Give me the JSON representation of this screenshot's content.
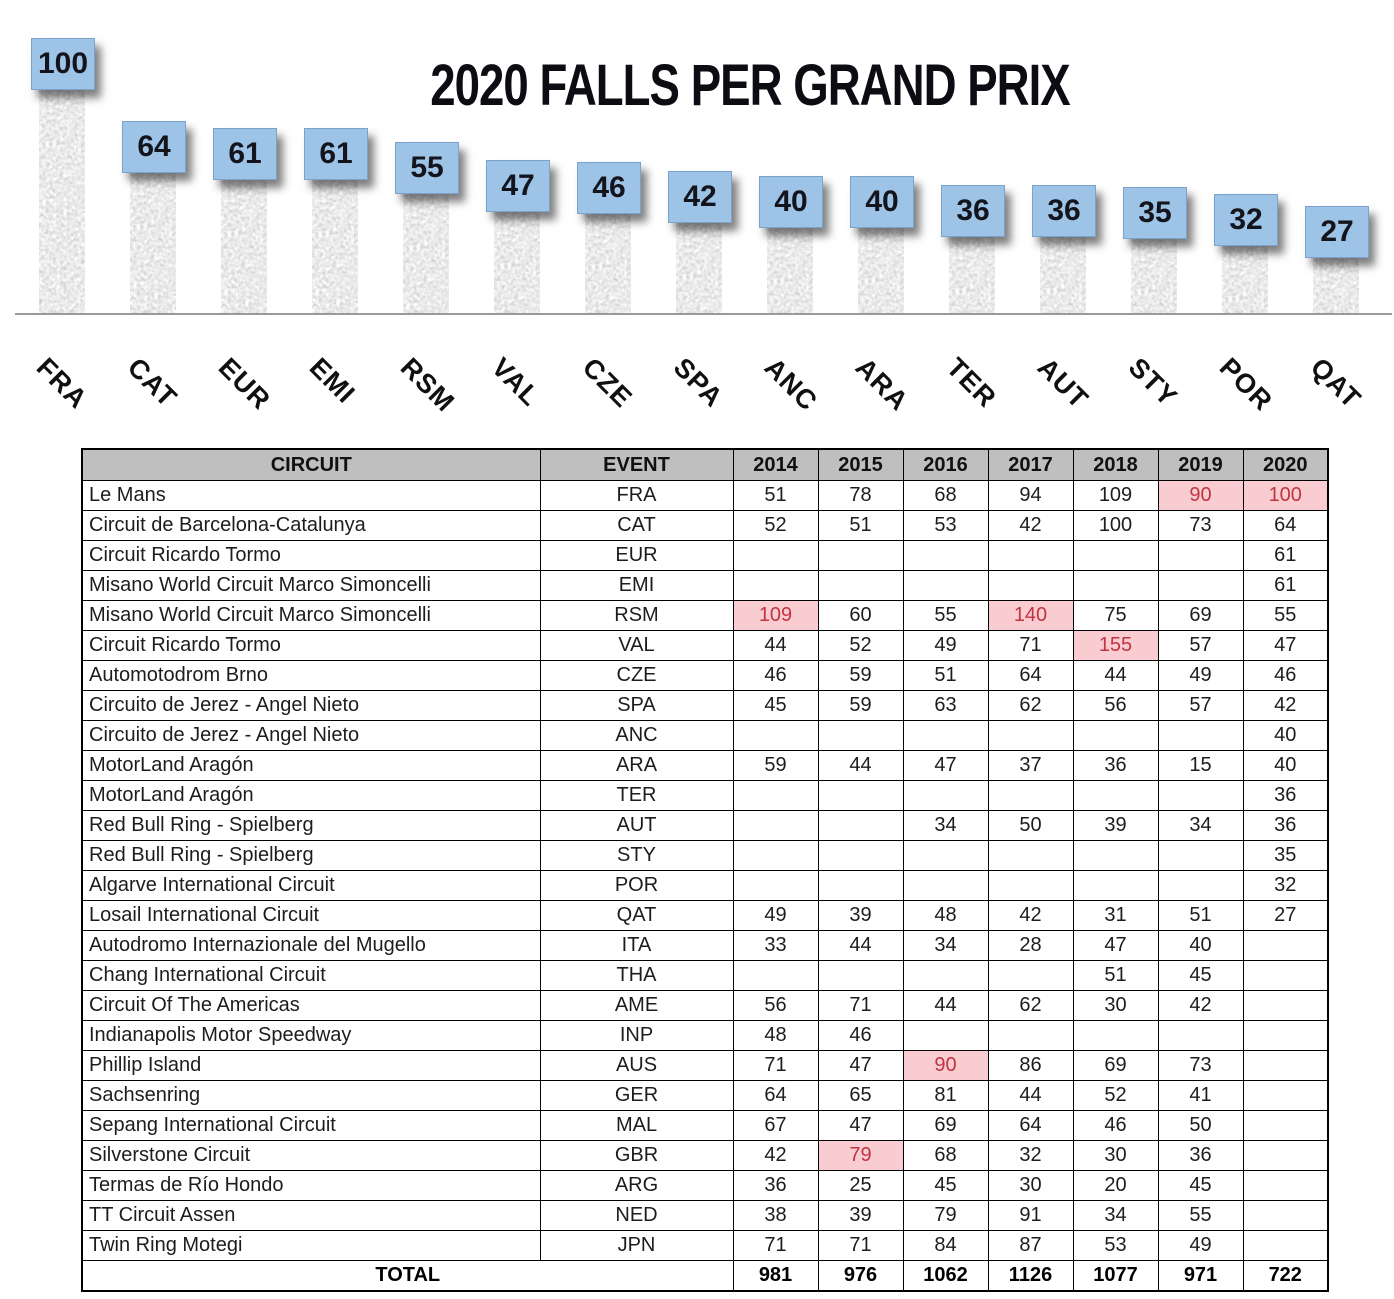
{
  "colors": {
    "value_box_bg": "#9dc3e6",
    "bar_fill": "#b9b9b9",
    "header_bg": "#bfbfbf",
    "highlight_bg": "#f9ccd2",
    "highlight_text": "#bf3540",
    "axis_line": "#9a9a9a",
    "title_text": "#0c0c12"
  },
  "chart_data": {
    "type": "bar",
    "title": "2020 FALLS PER GRAND PRIX",
    "categories": [
      "FRA",
      "CAT",
      "EUR",
      "EMI",
      "RSM",
      "VAL",
      "CZE",
      "SPA",
      "ANC",
      "ARA",
      "TER",
      "AUT",
      "STY",
      "POR",
      "QAT"
    ],
    "values": [
      100,
      64,
      61,
      61,
      55,
      47,
      46,
      42,
      40,
      40,
      36,
      36,
      35,
      32,
      27
    ],
    "xlabel": "",
    "ylabel": "",
    "ylim": [
      0,
      100
    ],
    "grid": false,
    "legend": false,
    "bar_style": "gray-noise-texture",
    "value_labels": "blue-box-above-bar",
    "x_tick_rotation_deg": 45
  },
  "table": {
    "headers": [
      "CIRCUIT",
      "EVENT",
      "2014",
      "2015",
      "2016",
      "2017",
      "2018",
      "2019",
      "2020"
    ],
    "rows": [
      {
        "circuit": "Le Mans",
        "event": "FRA",
        "values": [
          "51",
          "78",
          "68",
          "94",
          "109",
          "90",
          "100"
        ],
        "hl": [
          5,
          6
        ]
      },
      {
        "circuit": "Circuit de Barcelona-Catalunya",
        "event": "CAT",
        "values": [
          "52",
          "51",
          "53",
          "42",
          "100",
          "73",
          "64"
        ],
        "hl": []
      },
      {
        "circuit": "Circuit Ricardo Tormo",
        "event": "EUR",
        "values": [
          "",
          "",
          "",
          "",
          "",
          "",
          "61"
        ],
        "hl": []
      },
      {
        "circuit": "Misano World Circuit Marco Simoncelli",
        "event": "EMI",
        "values": [
          "",
          "",
          "",
          "",
          "",
          "",
          "61"
        ],
        "hl": []
      },
      {
        "circuit": "Misano World Circuit Marco Simoncelli",
        "event": "RSM",
        "values": [
          "109",
          "60",
          "55",
          "140",
          "75",
          "69",
          "55"
        ],
        "hl": [
          0,
          3
        ]
      },
      {
        "circuit": "Circuit Ricardo Tormo",
        "event": "VAL",
        "values": [
          "44",
          "52",
          "49",
          "71",
          "155",
          "57",
          "47"
        ],
        "hl": [
          4
        ]
      },
      {
        "circuit": "Automotodrom Brno",
        "event": "CZE",
        "values": [
          "46",
          "59",
          "51",
          "64",
          "44",
          "49",
          "46"
        ],
        "hl": []
      },
      {
        "circuit": "Circuito de Jerez - Angel Nieto",
        "event": "SPA",
        "values": [
          "45",
          "59",
          "63",
          "62",
          "56",
          "57",
          "42"
        ],
        "hl": []
      },
      {
        "circuit": "Circuito de Jerez - Angel Nieto",
        "event": "ANC",
        "values": [
          "",
          "",
          "",
          "",
          "",
          "",
          "40"
        ],
        "hl": []
      },
      {
        "circuit": "MotorLand Aragón",
        "event": "ARA",
        "values": [
          "59",
          "44",
          "47",
          "37",
          "36",
          "15",
          "40"
        ],
        "hl": []
      },
      {
        "circuit": "MotorLand Aragón",
        "event": "TER",
        "values": [
          "",
          "",
          "",
          "",
          "",
          "",
          "36"
        ],
        "hl": []
      },
      {
        "circuit": "Red Bull Ring - Spielberg",
        "event": "AUT",
        "values": [
          "",
          "",
          "34",
          "50",
          "39",
          "34",
          "36"
        ],
        "hl": []
      },
      {
        "circuit": "Red Bull Ring - Spielberg",
        "event": "STY",
        "values": [
          "",
          "",
          "",
          "",
          "",
          "",
          "35"
        ],
        "hl": []
      },
      {
        "circuit": "Algarve International Circuit",
        "event": "POR",
        "values": [
          "",
          "",
          "",
          "",
          "",
          "",
          "32"
        ],
        "hl": []
      },
      {
        "circuit": "Losail International Circuit",
        "event": "QAT",
        "values": [
          "49",
          "39",
          "48",
          "42",
          "31",
          "51",
          "27"
        ],
        "hl": []
      },
      {
        "circuit": "Autodromo Internazionale del Mugello",
        "event": "ITA",
        "values": [
          "33",
          "44",
          "34",
          "28",
          "47",
          "40",
          ""
        ],
        "hl": []
      },
      {
        "circuit": "Chang International Circuit",
        "event": "THA",
        "values": [
          "",
          "",
          "",
          "",
          "51",
          "45",
          ""
        ],
        "hl": []
      },
      {
        "circuit": "Circuit Of The Americas",
        "event": "AME",
        "values": [
          "56",
          "71",
          "44",
          "62",
          "30",
          "42",
          ""
        ],
        "hl": []
      },
      {
        "circuit": "Indianapolis Motor Speedway",
        "event": "INP",
        "values": [
          "48",
          "46",
          "",
          "",
          "",
          "",
          ""
        ],
        "hl": []
      },
      {
        "circuit": "Phillip Island",
        "event": "AUS",
        "values": [
          "71",
          "47",
          "90",
          "86",
          "69",
          "73",
          ""
        ],
        "hl": [
          2
        ]
      },
      {
        "circuit": "Sachsenring",
        "event": "GER",
        "values": [
          "64",
          "65",
          "81",
          "44",
          "52",
          "41",
          ""
        ],
        "hl": []
      },
      {
        "circuit": "Sepang International Circuit",
        "event": "MAL",
        "values": [
          "67",
          "47",
          "69",
          "64",
          "46",
          "50",
          ""
        ],
        "hl": []
      },
      {
        "circuit": "Silverstone Circuit",
        "event": "GBR",
        "values": [
          "42",
          "79",
          "68",
          "32",
          "30",
          "36",
          ""
        ],
        "hl": [
          1
        ]
      },
      {
        "circuit": "Termas de Río Hondo",
        "event": "ARG",
        "values": [
          "36",
          "25",
          "45",
          "30",
          "20",
          "45",
          ""
        ],
        "hl": []
      },
      {
        "circuit": "TT Circuit Assen",
        "event": "NED",
        "values": [
          "38",
          "39",
          "79",
          "91",
          "34",
          "55",
          ""
        ],
        "hl": []
      },
      {
        "circuit": "Twin Ring Motegi",
        "event": "JPN",
        "values": [
          "71",
          "71",
          "84",
          "87",
          "53",
          "49",
          ""
        ],
        "hl": []
      }
    ],
    "total": {
      "label": "TOTAL",
      "values": [
        "981",
        "976",
        "1062",
        "1126",
        "1077",
        "971",
        "722"
      ]
    }
  }
}
